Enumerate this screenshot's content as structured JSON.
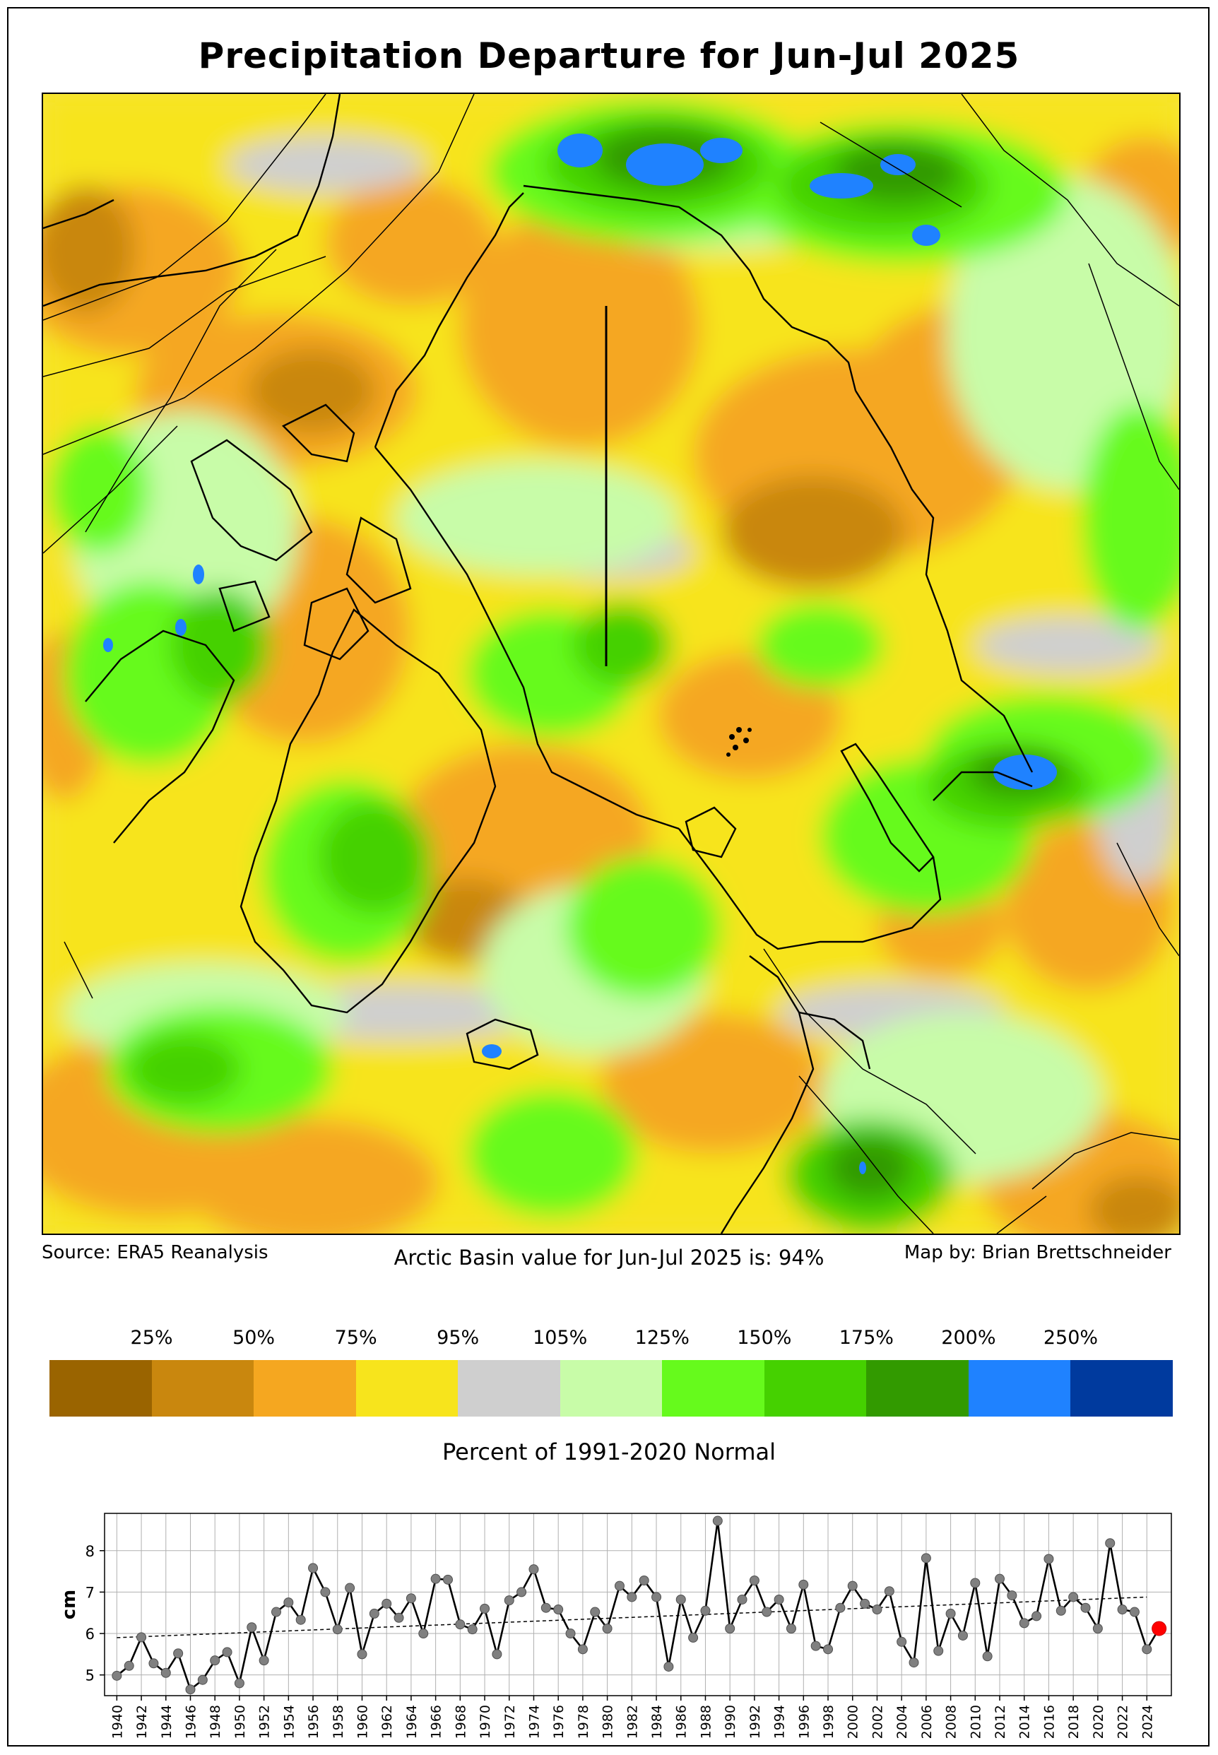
{
  "title": "Precipitation Departure for Jun-Jul 2025",
  "captions": {
    "source": "Source: ERA5 Reanalysis",
    "basin_value": "Arctic Basin value for Jun-Jul 2025 is: 94%",
    "author": "Map by: Brian Brettschneider"
  },
  "legend": {
    "title": "Percent of 1991-2020 Normal",
    "labels": [
      "25%",
      "50%",
      "75%",
      "95%",
      "105%",
      "125%",
      "150%",
      "175%",
      "200%",
      "250%"
    ],
    "colors": [
      "#9a6400",
      "#c9870e",
      "#f5a720",
      "#f7e41c",
      "#cfcfcf",
      "#c8fca8",
      "#66fa1c",
      "#45d100",
      "#329a00",
      "#1f82ff",
      "#003a9e"
    ]
  },
  "chart_data": {
    "type": "line",
    "title": "",
    "xlabel": "",
    "ylabel": "cm",
    "xlim": [
      1939,
      2026
    ],
    "ylim": [
      4.5,
      8.9
    ],
    "yticks": [
      5,
      6,
      7,
      8
    ],
    "xticks": [
      "1940",
      "1942",
      "1944",
      "1946",
      "1948",
      "1950",
      "1952",
      "1954",
      "1956",
      "1958",
      "1960",
      "1962",
      "1964",
      "1966",
      "1968",
      "1970",
      "1972",
      "1974",
      "1976",
      "1978",
      "1980",
      "1982",
      "1984",
      "1986",
      "1988",
      "1990",
      "1992",
      "1994",
      "1996",
      "1998",
      "2000",
      "2002",
      "2004",
      "2006",
      "2008",
      "2010",
      "2012",
      "2014",
      "2016",
      "2018",
      "2020",
      "2022",
      "2024"
    ],
    "grid": true,
    "x": [
      1940,
      1941,
      1942,
      1943,
      1944,
      1945,
      1946,
      1947,
      1948,
      1949,
      1950,
      1951,
      1952,
      1953,
      1954,
      1955,
      1956,
      1957,
      1958,
      1959,
      1960,
      1961,
      1962,
      1963,
      1964,
      1965,
      1966,
      1967,
      1968,
      1969,
      1970,
      1971,
      1972,
      1973,
      1974,
      1975,
      1976,
      1977,
      1978,
      1979,
      1980,
      1981,
      1982,
      1983,
      1984,
      1985,
      1986,
      1987,
      1988,
      1989,
      1990,
      1991,
      1992,
      1993,
      1994,
      1995,
      1996,
      1997,
      1998,
      1999,
      2000,
      2001,
      2002,
      2003,
      2004,
      2005,
      2006,
      2007,
      2008,
      2009,
      2010,
      2011,
      2012,
      2013,
      2014,
      2015,
      2016,
      2017,
      2018,
      2019,
      2020,
      2021,
      2022,
      2023,
      2024,
      2025
    ],
    "values": [
      4.98,
      5.22,
      5.91,
      5.28,
      5.05,
      5.52,
      4.65,
      4.88,
      5.35,
      5.55,
      4.8,
      6.15,
      5.35,
      6.52,
      6.75,
      6.33,
      7.58,
      7.0,
      6.1,
      7.1,
      5.5,
      6.48,
      6.72,
      6.38,
      6.85,
      6.0,
      7.32,
      7.3,
      6.22,
      6.1,
      6.6,
      5.5,
      6.8,
      7.0,
      7.55,
      6.62,
      6.58,
      6.0,
      5.62,
      6.52,
      6.12,
      7.15,
      6.88,
      7.28,
      6.88,
      5.2,
      6.82,
      5.9,
      6.55,
      8.72,
      6.12,
      6.82,
      7.28,
      6.52,
      6.82,
      6.12,
      7.18,
      5.7,
      5.62,
      6.62,
      7.15,
      6.72,
      6.58,
      7.02,
      5.8,
      5.3,
      7.82,
      5.58,
      6.48,
      5.95,
      7.22,
      5.45,
      7.32,
      6.92,
      6.25,
      6.42,
      7.8,
      6.55,
      6.88,
      6.62,
      6.12,
      8.18,
      6.58,
      6.52,
      5.62,
      6.12
    ],
    "trend": {
      "start": [
        1940,
        5.9
      ],
      "end": [
        2024,
        6.88
      ]
    },
    "highlight": {
      "x": 2025,
      "value": 6.12,
      "color": "#ff0000"
    }
  }
}
